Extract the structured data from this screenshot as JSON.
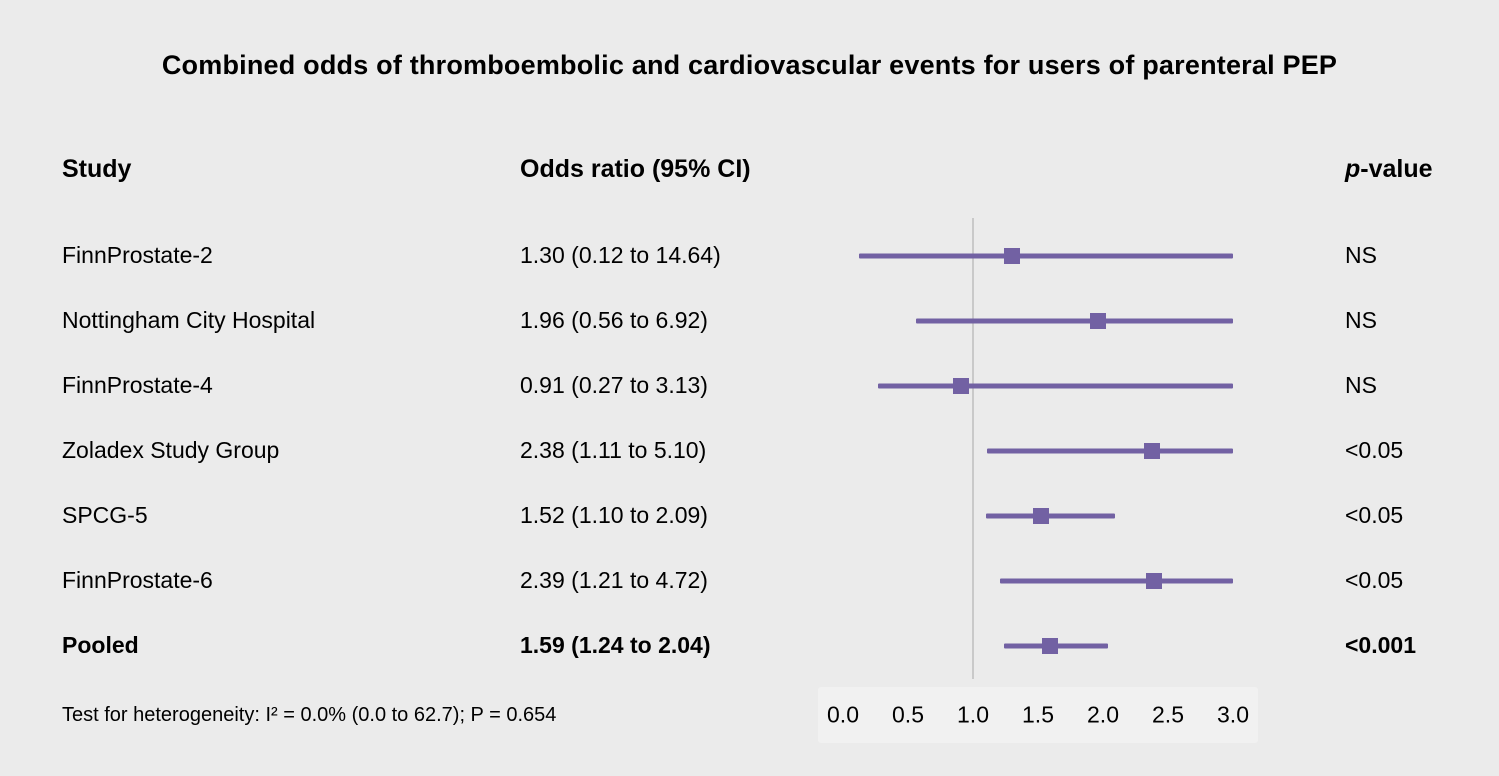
{
  "title": "Combined odds of thromboembolic and cardiovascular events for users of parenteral PEP",
  "columns": {
    "study": "Study",
    "odds_ratio": "Odds ratio (95% CI)",
    "p_header_italic": "p",
    "p_header_rest": "-value"
  },
  "footer_note": "Test for heterogeneity: I² = 0.0% (0.0 to 62.7); P = 0.654",
  "colors": {
    "accent": "#7261a3",
    "reference_line": "#c9c9c9",
    "background": "#ebebeb",
    "axis_band": "#f1f1f1",
    "text": "#000000"
  },
  "chart_data": {
    "type": "forest",
    "title": "Combined odds of thromboembolic and cardiovascular events for users of parenteral PEP",
    "xlabel": "",
    "xlim": [
      0.0,
      3.0
    ],
    "x_ticks": [
      0.0,
      0.5,
      1.0,
      1.5,
      2.0,
      2.5,
      3.0
    ],
    "x_tick_labels": [
      "0.0",
      "0.5",
      "1.0",
      "1.5",
      "2.0",
      "2.5",
      "3.0"
    ],
    "reference_line": 1.0,
    "upper_ci_clipped_at": 3.0,
    "studies": [
      {
        "label": "FinnProstate-2",
        "or": 1.3,
        "ci_lower": 0.12,
        "ci_upper": 14.64,
        "or_ci_label": "1.30 (0.12 to 14.64)",
        "p_value": "NS",
        "pooled": false
      },
      {
        "label": "Nottingham City Hospital",
        "or": 1.96,
        "ci_lower": 0.56,
        "ci_upper": 6.92,
        "or_ci_label": "1.96 (0.56 to 6.92)",
        "p_value": "NS",
        "pooled": false
      },
      {
        "label": "FinnProstate-4",
        "or": 0.91,
        "ci_lower": 0.27,
        "ci_upper": 3.13,
        "or_ci_label": "0.91 (0.27 to 3.13)",
        "p_value": "NS",
        "pooled": false
      },
      {
        "label": "Zoladex Study Group",
        "or": 2.38,
        "ci_lower": 1.11,
        "ci_upper": 5.1,
        "or_ci_label": "2.38 (1.11 to 5.10)",
        "p_value": "<0.05",
        "pooled": false
      },
      {
        "label": "SPCG-5",
        "or": 1.52,
        "ci_lower": 1.1,
        "ci_upper": 2.09,
        "or_ci_label": "1.52 (1.10 to 2.09)",
        "p_value": "<0.05",
        "pooled": false
      },
      {
        "label": "FinnProstate-6",
        "or": 2.39,
        "ci_lower": 1.21,
        "ci_upper": 4.72,
        "or_ci_label": "2.39 (1.21 to 4.72)",
        "p_value": "<0.05",
        "pooled": false
      },
      {
        "label": "Pooled",
        "or": 1.59,
        "ci_lower": 1.24,
        "ci_upper": 2.04,
        "or_ci_label": "1.59 (1.24 to 2.04)",
        "p_value": "<0.001",
        "pooled": true
      }
    ]
  }
}
